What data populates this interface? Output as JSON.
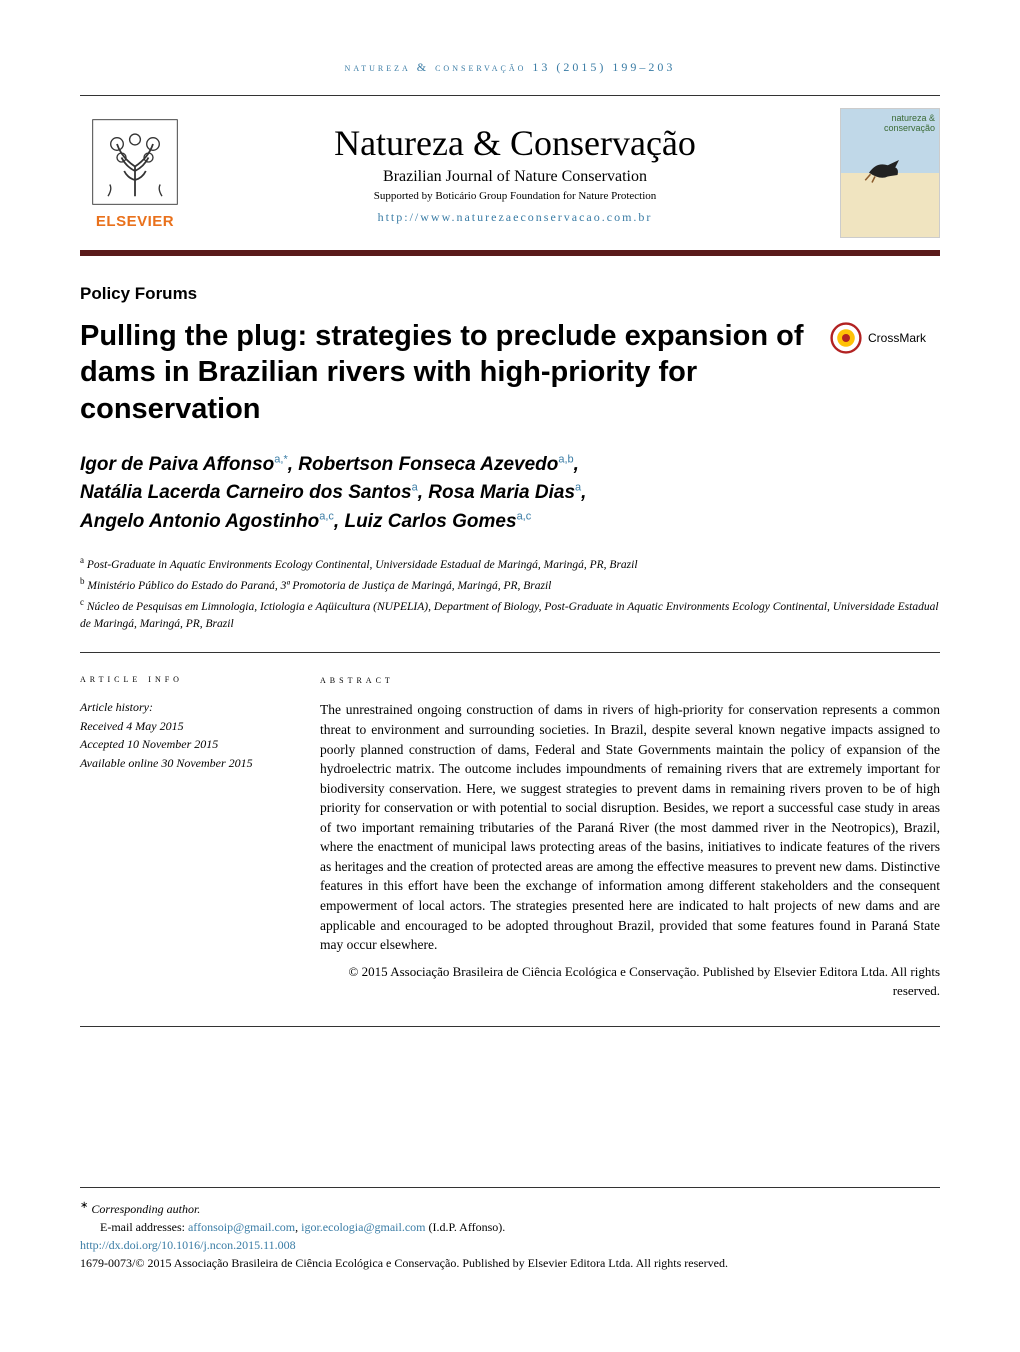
{
  "running_header": "natureza & conservação 13 (2015) 199–203",
  "masthead": {
    "publisher_wordmark": "ELSEVIER",
    "journal_title": "Natureza & Conservação",
    "journal_subtitle": "Brazilian Journal of Nature Conservation",
    "supported_by": "Supported by Boticário Group Foundation for Nature Protection",
    "url": "http://www.naturezaeconservacao.com.br",
    "cover_title_line1": "natureza &",
    "cover_title_line2": "conservação"
  },
  "section_label": "Policy Forums",
  "article_title": "Pulling the plug: strategies to preclude expansion of dams in Brazilian rivers with high-priority for conservation",
  "crossmark_label": "CrossMark",
  "authors_html": "Igor de Paiva Affonso|a,*|, Robertson Fonseca Azevedo|a,b|,\nNatália Lacerda Carneiro dos Santos|a|, Rosa Maria Dias|a|,\nAngelo Antonio Agostinho|a,c|, Luiz Carlos Gomes|a,c|",
  "authors": [
    {
      "name": "Igor de Paiva Affonso",
      "aff": "a,*"
    },
    {
      "name": "Robertson Fonseca Azevedo",
      "aff": "a,b"
    },
    {
      "name": "Natália Lacerda Carneiro dos Santos",
      "aff": "a"
    },
    {
      "name": "Rosa Maria Dias",
      "aff": "a"
    },
    {
      "name": "Angelo Antonio Agostinho",
      "aff": "a,c"
    },
    {
      "name": "Luiz Carlos Gomes",
      "aff": "a,c"
    }
  ],
  "affiliations": [
    {
      "key": "a",
      "text": "Post-Graduate in Aquatic Environments Ecology Continental, Universidade Estadual de Maringá, Maringá, PR, Brazil"
    },
    {
      "key": "b",
      "text": "Ministério Público do Estado do Paraná, 3ª Promotoria de Justiça de Maringá, Maringá, PR, Brazil"
    },
    {
      "key": "c",
      "text": "Núcleo de Pesquisas em Limnologia, Ictiologia e Aqüicultura (NUPELIA), Department of Biology, Post-Graduate in Aquatic Environments Ecology Continental, Universidade Estadual de Maringá, Maringá, PR, Brazil"
    }
  ],
  "info": {
    "heading": "article info",
    "history_label": "Article history:",
    "received": "Received 4 May 2015",
    "accepted": "Accepted 10 November 2015",
    "online": "Available online 30 November 2015"
  },
  "abstract": {
    "heading": "abstract",
    "body": "The unrestrained ongoing construction of dams in rivers of high-priority for conservation represents a common threat to environment and surrounding societies. In Brazil, despite several known negative impacts assigned to poorly planned construction of dams, Federal and State Governments maintain the policy of expansion of the hydroelectric matrix. The outcome includes impoundments of remaining rivers that are extremely important for biodiversity conservation. Here, we suggest strategies to prevent dams in remaining rivers proven to be of high priority for conservation or with potential to social disruption. Besides, we report a successful case study in areas of two important remaining tributaries of the Paraná River (the most dammed river in the Neotropics), Brazil, where the enactment of municipal laws protecting areas of the basins, initiatives to indicate features of the rivers as heritages and the creation of protected areas are among the effective measures to prevent new dams. Distinctive features in this effort have been the exchange of information among different stakeholders and the consequent empowerment of local actors. The strategies presented here are indicated to halt projects of new dams and are applicable and encouraged to be adopted throughout Brazil, provided that some features found in Paraná State may occur elsewhere.",
    "copyright": "© 2015 Associação Brasileira de Ciência Ecológica e Conservação. Published by Elsevier Editora Ltda. All rights reserved."
  },
  "footer": {
    "corresponding": "Corresponding author.",
    "email_label": "E-mail addresses:",
    "emails": [
      "affonsoip@gmail.com",
      "igor.ecologia@gmail.com"
    ],
    "email_attr": "(I.d.P. Affonso).",
    "doi": "http://dx.doi.org/10.1016/j.ncon.2015.11.008",
    "issn_line": "1679-0073/© 2015 Associação Brasileira de Ciência Ecológica e Conservação. Published by Elsevier Editora Ltda. All rights reserved."
  },
  "colors": {
    "link": "#3a7ca5",
    "elsevier_orange": "#e9711c",
    "rule_dark": "#5a1a1a",
    "text": "#000000",
    "crossmark_ring": "#b22222",
    "crossmark_inner": "#ffc107"
  },
  "typography": {
    "journal_title_pt": 27,
    "article_title_pt": 22,
    "authors_pt": 14,
    "body_pt": 10,
    "affil_pt": 9,
    "footer_pt": 9
  }
}
